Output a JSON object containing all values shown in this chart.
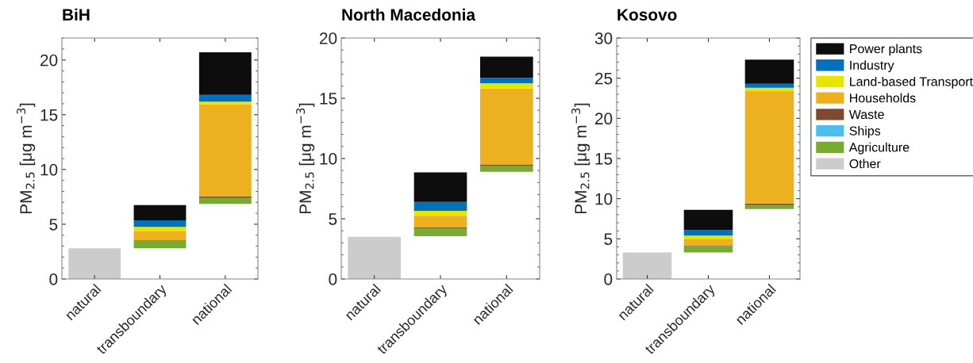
{
  "chart_data": [
    {
      "type": "bar",
      "title": "BiH",
      "ylabel": "PM$_{2.5}$ [μg m$^{−3}$]",
      "categories": [
        "natural",
        "transboundary",
        "national"
      ],
      "ylim": [
        0,
        22
      ],
      "yticks": [
        0,
        5,
        10,
        15,
        20
      ],
      "legend": false,
      "series": [
        {
          "color": "#cccccc",
          "values": [
            2.8,
            null,
            null
          ],
          "base": [
            0,
            null,
            null
          ]
        },
        {
          "color": "#77ac30",
          "values": [
            null,
            0.75,
            0.55
          ],
          "base": [
            null,
            2.8,
            6.85
          ]
        },
        {
          "color": "#7e4a2f",
          "values": [
            null,
            null,
            0.15
          ],
          "base": [
            null,
            null,
            7.4
          ]
        },
        {
          "color": "#edb120",
          "values": [
            null,
            0.8,
            8.4
          ],
          "base": [
            null,
            3.55,
            7.55
          ]
        },
        {
          "color": "#e6e600",
          "values": [
            null,
            0.4,
            0.25
          ],
          "base": [
            null,
            4.35,
            15.95
          ]
        },
        {
          "color": "#0072bd",
          "values": [
            null,
            0.6,
            0.6
          ],
          "base": [
            null,
            4.75,
            16.2
          ]
        },
        {
          "color": "#0d0d0d",
          "values": [
            null,
            1.4,
            3.9
          ],
          "base": [
            null,
            5.35,
            16.8
          ]
        }
      ]
    },
    {
      "type": "bar",
      "title": "North Macedonia",
      "ylabel": "PM$_{2.5}$ [μg m$^{−3}$]",
      "categories": [
        "natural",
        "transboundary",
        "national"
      ],
      "ylim": [
        0,
        20
      ],
      "yticks": [
        0,
        5,
        10,
        15,
        20
      ],
      "legend": false,
      "series": [
        {
          "color": "#cccccc",
          "values": [
            3.5,
            null,
            null
          ],
          "base": [
            0,
            null,
            null
          ]
        },
        {
          "color": "#77ac30",
          "values": [
            null,
            0.65,
            0.5
          ],
          "base": [
            null,
            3.55,
            8.9
          ]
        },
        {
          "color": "#7e4a2f",
          "values": [
            null,
            0.1,
            0.1
          ],
          "base": [
            null,
            4.2,
            9.4
          ]
        },
        {
          "color": "#edb120",
          "values": [
            null,
            0.95,
            6.3
          ],
          "base": [
            null,
            4.3,
            9.5
          ]
        },
        {
          "color": "#e6e600",
          "values": [
            null,
            0.4,
            0.45
          ],
          "base": [
            null,
            5.25,
            15.8
          ]
        },
        {
          "color": "#0072bd",
          "values": [
            null,
            0.75,
            0.45
          ],
          "base": [
            null,
            5.65,
            16.25
          ]
        },
        {
          "color": "#0d0d0d",
          "values": [
            null,
            2.45,
            1.75
          ],
          "base": [
            null,
            6.4,
            16.7
          ]
        }
      ]
    },
    {
      "type": "bar",
      "title": "Kosovo",
      "ylabel": "PM$_{2.5}$ [μg m$^{−3}$]",
      "categories": [
        "natural",
        "transboundary",
        "national"
      ],
      "ylim": [
        0,
        30
      ],
      "yticks": [
        0,
        5,
        10,
        15,
        20,
        25,
        30
      ],
      "legend": "right",
      "series": [
        {
          "name": "Other",
          "color": "#cccccc",
          "values": [
            3.3,
            null,
            null
          ],
          "base": [
            0,
            null,
            null
          ]
        },
        {
          "name": "Agriculture",
          "color": "#77ac30",
          "values": [
            null,
            0.8,
            0.5
          ],
          "base": [
            null,
            3.3,
            8.7
          ]
        },
        {
          "name": "Ships",
          "color": "#4dbeee",
          "values": [
            null,
            null,
            null
          ]
        },
        {
          "name": "Waste",
          "color": "#7e4a2f",
          "values": [
            null,
            0.1,
            0.2
          ],
          "base": [
            null,
            4.1,
            9.2
          ]
        },
        {
          "name": "Households",
          "color": "#edb120",
          "values": [
            null,
            0.8,
            14.0
          ],
          "base": [
            null,
            4.2,
            9.4
          ]
        },
        {
          "name": "Land-based Transport",
          "color": "#e6e600",
          "values": [
            null,
            0.4,
            0.4
          ],
          "base": [
            null,
            5.0,
            23.4
          ]
        },
        {
          "name": "Industry",
          "color": "#0072bd",
          "values": [
            null,
            0.7,
            0.5
          ],
          "base": [
            null,
            5.4,
            23.8
          ]
        },
        {
          "name": "Power plants",
          "color": "#0d0d0d",
          "values": [
            null,
            2.5,
            3.0
          ],
          "base": [
            null,
            6.1,
            24.3
          ]
        }
      ]
    }
  ]
}
